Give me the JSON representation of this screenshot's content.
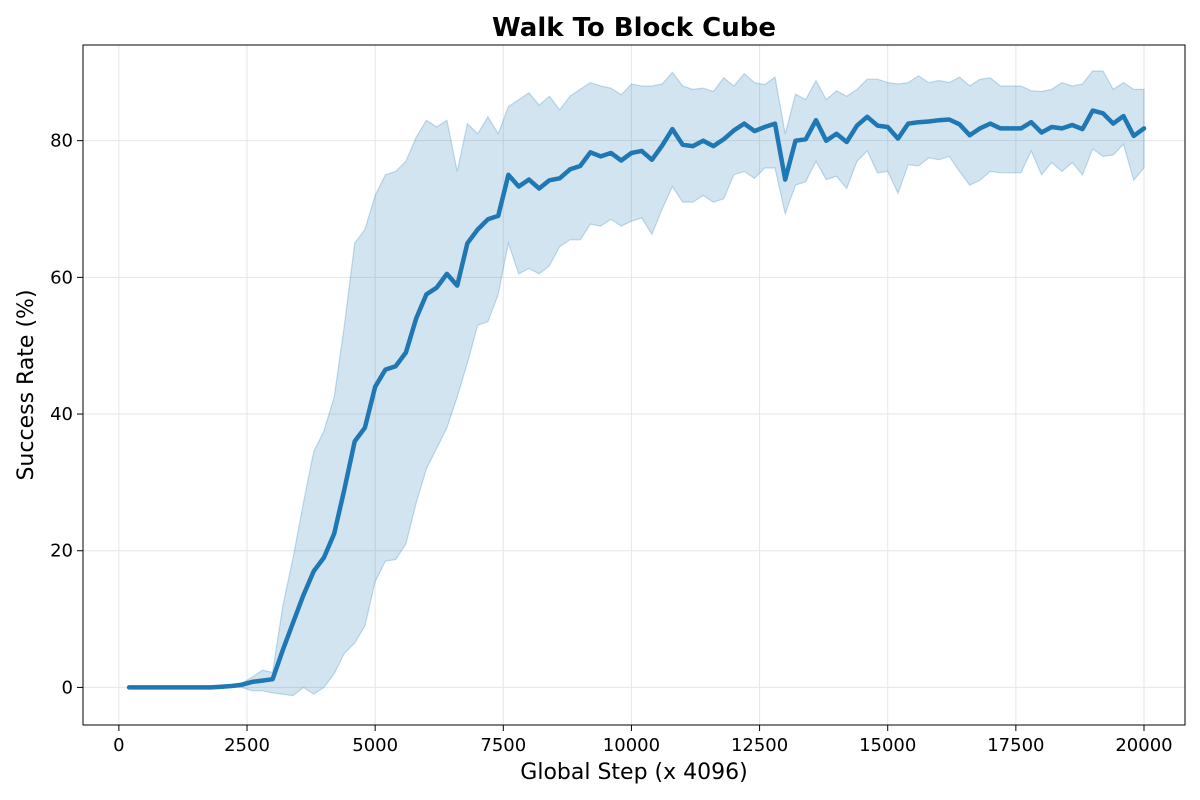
{
  "chart_data": {
    "type": "line",
    "title": "Walk To Block Cube",
    "xlabel": "Global Step (x 4096)",
    "ylabel": "Success Rate (%)",
    "xlim": [
      -700,
      20800
    ],
    "ylim": [
      -5.5,
      94
    ],
    "xticks": [
      0,
      2500,
      5000,
      7500,
      10000,
      12500,
      15000,
      17500,
      20000
    ],
    "yticks": [
      0,
      20,
      40,
      60,
      80
    ],
    "grid": true,
    "colors": {
      "line": "#1f77b4",
      "band": "#1f77b4"
    },
    "series": [
      {
        "x": [
          200,
          400,
          600,
          800,
          1000,
          1200,
          1400,
          1600,
          1800,
          2000,
          2200,
          2400,
          2600,
          2800,
          3000,
          3200,
          3400,
          3600,
          3800,
          4000,
          4200,
          4400,
          4600,
          4800,
          5000,
          5200,
          5400,
          5600,
          5800,
          6000,
          6200,
          6400,
          6600,
          6800,
          7000,
          7200,
          7400,
          7600,
          7800,
          8000,
          8200,
          8400,
          8600,
          8800,
          9000,
          9200,
          9400,
          9600,
          9800,
          10000,
          10200,
          10400,
          10600,
          10800,
          11000,
          11200,
          11400,
          11600,
          11800,
          12000,
          12200,
          12400,
          12600,
          12800,
          13000,
          13200,
          13400,
          13600,
          13800,
          14000,
          14200,
          14400,
          14600,
          14800,
          15000,
          15200,
          15400,
          15600,
          15800,
          16000,
          16200,
          16400,
          16600,
          16800,
          17000,
          17200,
          17400,
          17600,
          17800,
          18000,
          18200,
          18400,
          18600,
          18800,
          19000,
          19200,
          19400,
          19600,
          19800,
          20000
        ],
        "y": [
          0,
          0,
          0,
          0,
          0,
          0,
          0,
          0,
          0,
          0.1,
          0.2,
          0.4,
          0.8,
          1.0,
          1.2,
          5.5,
          9.5,
          13.5,
          17.0,
          19.0,
          22.5,
          29.0,
          36.0,
          38.0,
          44.0,
          46.5,
          47.0,
          49.0,
          54.0,
          57.5,
          58.5,
          60.5,
          58.8,
          65.0,
          67.0,
          68.5,
          69.0,
          75.0,
          73.3,
          74.3,
          73.0,
          74.2,
          74.5,
          75.8,
          76.3,
          78.3,
          77.7,
          78.2,
          77.1,
          78.2,
          78.5,
          77.2,
          79.3,
          81.7,
          79.4,
          79.2,
          80.0,
          79.2,
          80.2,
          81.5,
          82.5,
          81.4,
          82.0,
          82.5,
          74.3,
          80.0,
          80.2,
          83.0,
          80.0,
          81.0,
          79.8,
          82.2,
          83.5,
          82.2,
          82.0,
          80.3,
          82.5,
          82.7,
          82.8,
          83.0,
          83.1,
          82.4,
          80.8,
          81.8,
          82.5,
          81.8,
          81.8,
          81.8,
          82.7,
          81.2,
          82.0,
          81.8,
          82.3,
          81.7,
          84.4,
          84.0,
          82.5,
          83.6,
          80.7,
          81.8
        ],
        "upper": [
          0,
          0,
          0,
          0,
          0,
          0,
          0,
          0,
          0,
          0.1,
          0.3,
          0.6,
          1.5,
          2.5,
          2.2,
          12.0,
          19.0,
          27.0,
          34.5,
          37.5,
          42.5,
          53.0,
          65.0,
          67.0,
          72.0,
          75.0,
          75.5,
          77.0,
          80.5,
          83.0,
          82.0,
          83.0,
          75.5,
          82.5,
          81.0,
          83.5,
          81.0,
          85.0,
          86.0,
          87.0,
          85.2,
          86.5,
          84.5,
          86.5,
          87.5,
          88.5,
          88.0,
          87.7,
          86.7,
          88.3,
          88.0,
          88.0,
          88.3,
          90.0,
          88.0,
          87.5,
          87.7,
          87.2,
          89.2,
          88.0,
          89.8,
          88.5,
          88.2,
          89.3,
          81.0,
          86.8,
          86.0,
          88.8,
          86.0,
          87.3,
          86.5,
          87.5,
          89.0,
          89.0,
          88.5,
          88.3,
          88.5,
          89.5,
          88.5,
          88.8,
          88.5,
          89.3,
          88.0,
          89.0,
          89.2,
          88.0,
          88.0,
          88.0,
          87.3,
          87.2,
          87.5,
          88.5,
          88.0,
          88.3,
          90.2,
          90.2,
          87.5,
          88.5,
          87.5,
          87.5
        ],
        "lower": [
          0,
          0,
          0,
          0,
          0,
          0,
          0,
          0,
          0,
          0,
          0,
          0,
          -0.5,
          -0.5,
          -0.8,
          -1.0,
          -1.2,
          0,
          -1.0,
          0,
          2.0,
          5.0,
          6.5,
          9.0,
          15.5,
          18.5,
          18.7,
          21.0,
          27.0,
          32.0,
          35.0,
          38.0,
          42.5,
          47.5,
          53.0,
          53.5,
          57.5,
          65.0,
          60.5,
          61.3,
          60.5,
          61.7,
          64.5,
          65.5,
          65.5,
          67.8,
          67.5,
          68.5,
          67.5,
          68.2,
          68.7,
          66.3,
          70.0,
          73.3,
          71.0,
          71.0,
          72.0,
          71.0,
          71.5,
          75.0,
          75.5,
          74.5,
          76.0,
          76.0,
          69.3,
          73.5,
          74.0,
          77.0,
          74.3,
          74.8,
          73.0,
          77.0,
          78.5,
          75.3,
          75.5,
          72.3,
          76.5,
          76.3,
          77.5,
          77.2,
          77.7,
          75.5,
          73.5,
          74.2,
          75.5,
          75.3,
          75.3,
          75.3,
          78.5,
          75.0,
          76.8,
          75.5,
          76.8,
          75.0,
          78.8,
          77.7,
          77.9,
          79.5,
          74.2,
          76.0
        ]
      }
    ]
  }
}
